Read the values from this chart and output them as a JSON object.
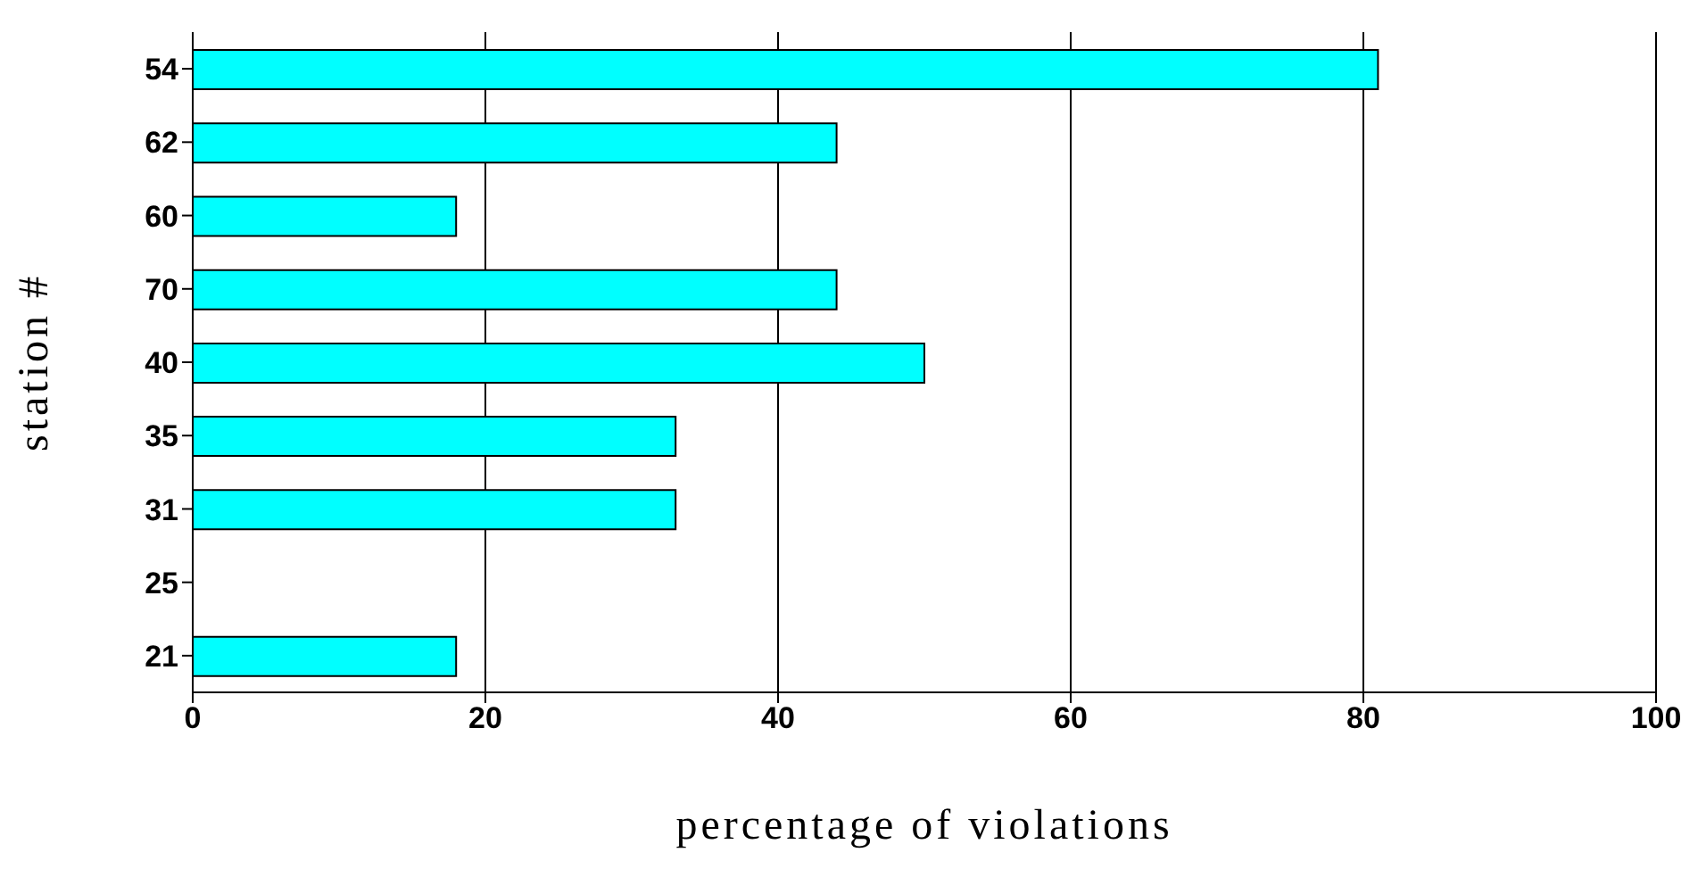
{
  "chart_data": {
    "type": "bar",
    "orientation": "horizontal",
    "categories": [
      "54",
      "62",
      "60",
      "70",
      "40",
      "35",
      "31",
      "25",
      "21"
    ],
    "values": [
      81,
      44,
      18,
      44,
      50,
      33,
      33,
      0,
      18
    ],
    "color": "#00ffff",
    "xlim": [
      0,
      100
    ],
    "xticks": [
      0,
      20,
      40,
      60,
      80,
      100
    ],
    "grid": "x",
    "xlabel": "percentage of violations",
    "ylabel": "station #"
  }
}
